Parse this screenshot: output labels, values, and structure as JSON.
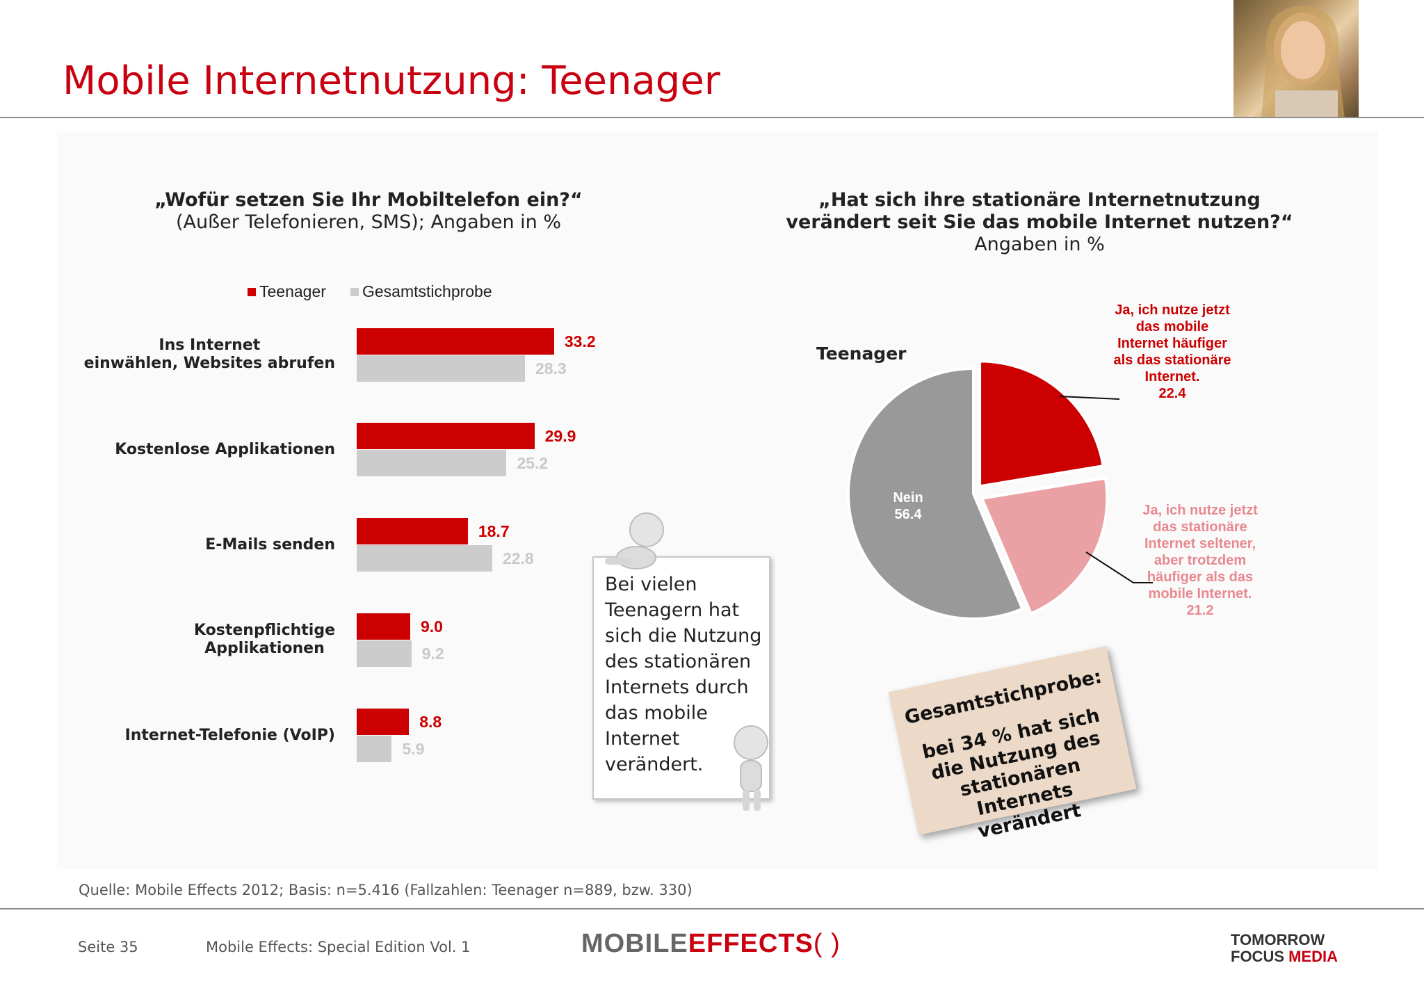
{
  "title": "Mobile Internetnutzung: Teenager",
  "left_chart": {
    "question": "„Wofür setzen Sie Ihr Mobiltelefon ein?“",
    "subtitle": "(Außer Telefonieren, SMS); Angaben in %",
    "legend": [
      "Teenager",
      "Gesamtstichprobe"
    ]
  },
  "right_chart": {
    "question_line1": "„Hat sich ihre stationäre Internetnutzung",
    "question_line2": "verändert seit Sie das mobile Internet nutzen?“",
    "subtitle": "Angaben in %",
    "pie_label": "Teenager"
  },
  "chart_data": [
    {
      "type": "bar",
      "orientation": "horizontal",
      "categories": [
        "Ins Internet einwählen, Websites abrufen",
        "Kostenlose Applikationen",
        "E-Mails senden",
        "Kostenpflichtige Applikationen",
        "Internet-Telefonie (VoIP)"
      ],
      "series": [
        {
          "name": "Teenager",
          "values": [
            33.2,
            29.9,
            18.7,
            9.0,
            8.8
          ],
          "color": "#cc0000"
        },
        {
          "name": "Gesamtstichprobe",
          "values": [
            28.3,
            25.2,
            22.8,
            9.2,
            5.9
          ],
          "color": "#cccccc"
        }
      ],
      "value_labels": {
        "Teenager": [
          "33.2",
          "29.9",
          "18.7",
          "9.0",
          "8.8"
        ],
        "Gesamtstichprobe": [
          "28.3",
          "25.2",
          "22.8",
          "9.2",
          "5.9"
        ]
      },
      "xlim": [
        0,
        40
      ],
      "legend": "top"
    },
    {
      "type": "pie",
      "title": "Teenager",
      "slices": [
        {
          "label": "Ja, ich nutze jetzt das mobile Internet häufiger als das stationäre Internet.",
          "value": 22.4,
          "color": "#cc0000"
        },
        {
          "label": "Ja, ich nutze jetzt das stationäre Internet seltener, aber trotzdem häufiger als das mobile Internet.",
          "value": 21.2,
          "color": "#eaa1a4"
        },
        {
          "label": "Nein",
          "value": 56.4,
          "color": "#999999"
        }
      ],
      "value_labels": [
        "22.4",
        "21.2",
        "56.4"
      ]
    }
  ],
  "note": "Bei vielen Teenagern hat sich die Nutzung des stationären Internets durch das mobile Internet verändert.",
  "sticky": {
    "heading": "Gesamtstichprobe:",
    "text": "bei 34 % hat sich die Nutzung des stationären Internets verändert"
  },
  "source": "Quelle: Mobile Effects 2012; Basis: n=5.416 (Fallzahlen: Teenager n=889, bzw. 330)",
  "footer": {
    "page": "Seite 35",
    "edition": "Mobile Effects: Special Edition Vol. 1",
    "logo_main_1": "MOBILE",
    "logo_main_2": "EFFECTS",
    "logo_partner_1": "TOMORROW",
    "logo_partner_2": "FOCUS",
    "logo_partner_3": "MEDIA"
  },
  "colors": {
    "accent": "#c8000f",
    "teen": "#cc0000",
    "total": "#cccccc",
    "pie_pink": "#eaa1a4",
    "pie_grey": "#999999"
  }
}
